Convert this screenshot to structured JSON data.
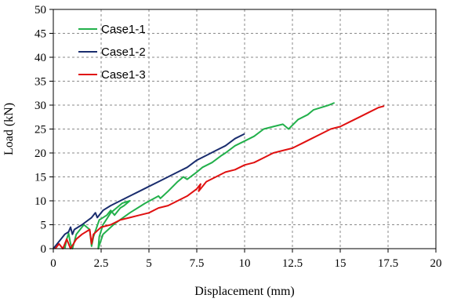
{
  "chart_data": {
    "type": "line",
    "xlabel": "Displacement (mm)",
    "ylabel": "Load (kN)",
    "xlim": [
      0,
      20
    ],
    "ylim": [
      0,
      50
    ],
    "x_ticks": [
      "0",
      "2.5",
      "5",
      "7.5",
      "10",
      "12.5",
      "15",
      "17.5",
      "20"
    ],
    "y_ticks": [
      "0",
      "5",
      "10",
      "15",
      "20",
      "25",
      "30",
      "35",
      "40",
      "45",
      "50"
    ],
    "grid": "dashed",
    "legend_position": "top-left",
    "series": [
      {
        "name": "Case1-1",
        "color": "#22b04b",
        "points": [
          [
            0.6,
            0
          ],
          [
            0.7,
            2.0
          ],
          [
            0.8,
            3.2
          ],
          [
            0.9,
            1.0
          ],
          [
            1.0,
            0
          ],
          [
            1.2,
            3.0
          ],
          [
            1.6,
            5.0
          ],
          [
            1.9,
            4.0
          ],
          [
            2.0,
            0.5
          ],
          [
            2.1,
            2.5
          ],
          [
            2.4,
            6.0
          ],
          [
            2.8,
            7.0
          ],
          [
            3.0,
            8.0
          ],
          [
            3.2,
            7.0
          ],
          [
            3.5,
            8.5
          ],
          [
            3.7,
            9.0
          ],
          [
            4.0,
            10.0
          ],
          [
            3.6,
            9.5
          ],
          [
            3.0,
            7.5
          ],
          [
            2.6,
            5.0
          ],
          [
            2.4,
            2.5
          ],
          [
            2.35,
            0
          ],
          [
            2.6,
            3.0
          ],
          [
            3.2,
            5.2
          ],
          [
            4.0,
            7.5
          ],
          [
            4.8,
            9.5
          ],
          [
            5.5,
            11.0
          ],
          [
            5.6,
            10.5
          ],
          [
            6.0,
            12.0
          ],
          [
            6.5,
            14.0
          ],
          [
            6.8,
            15.0
          ],
          [
            7.0,
            14.5
          ],
          [
            7.5,
            16.0
          ],
          [
            7.8,
            17.0
          ],
          [
            8.3,
            18.0
          ],
          [
            8.8,
            19.5
          ],
          [
            9.0,
            20.0
          ],
          [
            9.5,
            21.5
          ],
          [
            10.0,
            22.5
          ],
          [
            10.5,
            23.5
          ],
          [
            11.0,
            25.0
          ],
          [
            11.5,
            25.5
          ],
          [
            12.0,
            26.0
          ],
          [
            12.3,
            25.0
          ],
          [
            12.8,
            27.0
          ],
          [
            13.3,
            28.0
          ],
          [
            13.6,
            29.0
          ],
          [
            14.0,
            29.5
          ],
          [
            14.4,
            30.0
          ],
          [
            14.7,
            30.5
          ]
        ]
      },
      {
        "name": "Case1-2",
        "color": "#1a2d6e",
        "points": [
          [
            0,
            0
          ],
          [
            0.2,
            1.0
          ],
          [
            0.4,
            2.0
          ],
          [
            0.6,
            3.0
          ],
          [
            0.8,
            3.5
          ],
          [
            0.9,
            4.5
          ],
          [
            1.0,
            3.0
          ],
          [
            1.1,
            4.0
          ],
          [
            1.5,
            5.0
          ],
          [
            2.0,
            6.5
          ],
          [
            2.2,
            7.5
          ],
          [
            2.3,
            6.5
          ],
          [
            2.6,
            8.0
          ],
          [
            3.0,
            9.0
          ],
          [
            3.5,
            10.0
          ],
          [
            4.0,
            11.0
          ],
          [
            4.5,
            12.0
          ],
          [
            5.0,
            13.0
          ],
          [
            5.5,
            14.0
          ],
          [
            6.0,
            15.0
          ],
          [
            6.5,
            16.0
          ],
          [
            7.0,
            17.0
          ],
          [
            7.5,
            18.5
          ],
          [
            8.0,
            19.5
          ],
          [
            8.5,
            20.5
          ],
          [
            9.0,
            21.5
          ],
          [
            9.5,
            23.0
          ],
          [
            10.0,
            24.0
          ]
        ]
      },
      {
        "name": "Case1-3",
        "color": "#e01010",
        "points": [
          [
            0.1,
            0
          ],
          [
            0.3,
            1.0
          ],
          [
            0.5,
            0
          ],
          [
            0.7,
            2.0
          ],
          [
            0.9,
            0
          ],
          [
            1.2,
            2.0
          ],
          [
            1.5,
            3.0
          ],
          [
            1.9,
            4.0
          ],
          [
            2.0,
            1.0
          ],
          [
            2.1,
            3.0
          ],
          [
            2.5,
            4.5
          ],
          [
            3.0,
            5.0
          ],
          [
            3.5,
            6.0
          ],
          [
            4.0,
            6.5
          ],
          [
            4.5,
            7.0
          ],
          [
            5.0,
            7.5
          ],
          [
            5.5,
            8.5
          ],
          [
            6.0,
            9.0
          ],
          [
            6.5,
            10.0
          ],
          [
            7.0,
            11.0
          ],
          [
            7.5,
            12.5
          ],
          [
            7.7,
            13.5
          ],
          [
            7.6,
            12.0
          ],
          [
            8.0,
            14.0
          ],
          [
            8.5,
            15.0
          ],
          [
            9.0,
            16.0
          ],
          [
            9.5,
            16.5
          ],
          [
            10.0,
            17.5
          ],
          [
            10.5,
            18.0
          ],
          [
            11.0,
            19.0
          ],
          [
            11.5,
            20.0
          ],
          [
            12.0,
            20.5
          ],
          [
            12.5,
            21.0
          ],
          [
            13.0,
            22.0
          ],
          [
            13.5,
            23.0
          ],
          [
            14.0,
            24.0
          ],
          [
            14.5,
            25.0
          ],
          [
            15.0,
            25.5
          ],
          [
            15.5,
            26.5
          ],
          [
            16.0,
            27.5
          ],
          [
            16.5,
            28.5
          ],
          [
            17.0,
            29.5
          ],
          [
            17.3,
            29.8
          ]
        ]
      }
    ]
  }
}
